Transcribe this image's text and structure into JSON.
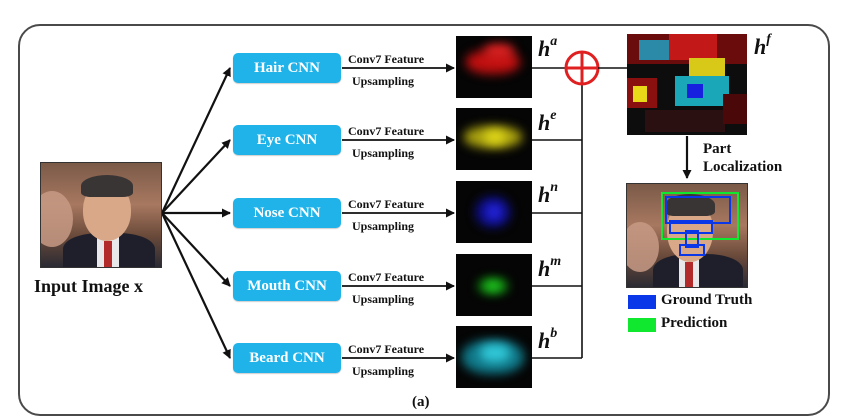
{
  "input": {
    "label": "Input Image x"
  },
  "branches": [
    {
      "cnn": "Hair CNN",
      "feature": "Conv7 Feature",
      "upsampling": "Upsampling",
      "h_sup": "a",
      "color": "#d01010"
    },
    {
      "cnn": "Eye CNN",
      "feature": "Conv7 Feature",
      "upsampling": "Upsampling",
      "h_sup": "e",
      "color": "#c8c010"
    },
    {
      "cnn": "Nose CNN",
      "feature": "Conv7 Feature",
      "upsampling": "Upsampling",
      "h_sup": "n",
      "color": "#1818d8"
    },
    {
      "cnn": "Mouth CNN",
      "feature": "Conv7 Feature",
      "upsampling": "Upsampling",
      "h_sup": "m",
      "color": "#18c818"
    },
    {
      "cnn": "Beard CNN",
      "feature": "Conv7 Feature",
      "upsampling": "Upsampling",
      "h_sup": "b",
      "color": "#18b8c8"
    }
  ],
  "h_base": "h",
  "fused": {
    "h_sup": "f"
  },
  "part_localization": {
    "line1": "Part",
    "line2": "Localization"
  },
  "legend": [
    {
      "label": "Ground Truth",
      "color": "#0a38e8"
    },
    {
      "label": "Prediction",
      "color": "#10e830"
    }
  ],
  "caption": "(a)"
}
